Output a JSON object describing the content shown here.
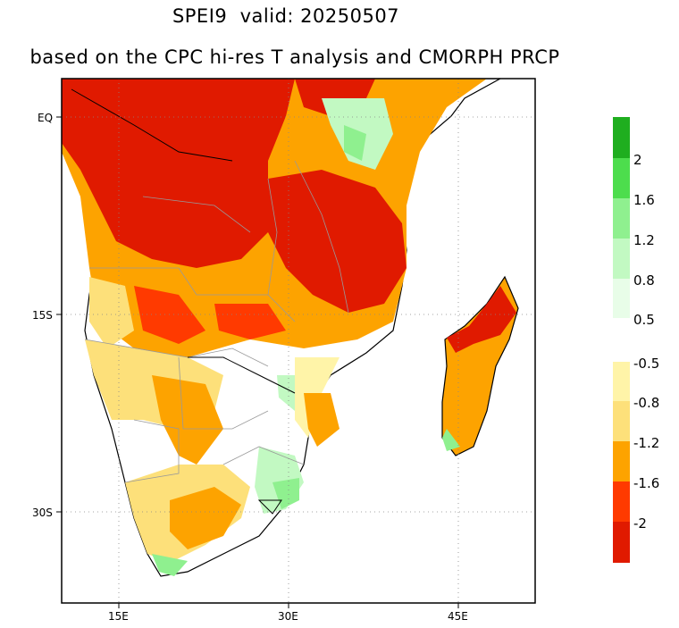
{
  "title_line1": "SPEI9  valid: 20250507",
  "title_line2": "based on the CPC hi-res T analysis and CMORPH PRCP",
  "y_ticks": [
    "EQ",
    "15S",
    "30S"
  ],
  "x_ticks": [
    "15E",
    "30E",
    "45E"
  ],
  "colorbar_positive": {
    "labels": [
      "2",
      "1.6",
      "1.2",
      "0.8",
      "0.5"
    ],
    "colors": [
      "#1fae1f",
      "#4ddd4d",
      "#8ff08f",
      "#c2f9c2",
      "#e8fde8"
    ]
  },
  "colorbar_negative": {
    "labels": [
      "-0.5",
      "-0.8",
      "-1.2",
      "-1.6",
      "-2"
    ],
    "colors": [
      "#fff4a8",
      "#fde07a",
      "#fda300",
      "#ff3a00",
      "#e01a00"
    ]
  }
}
